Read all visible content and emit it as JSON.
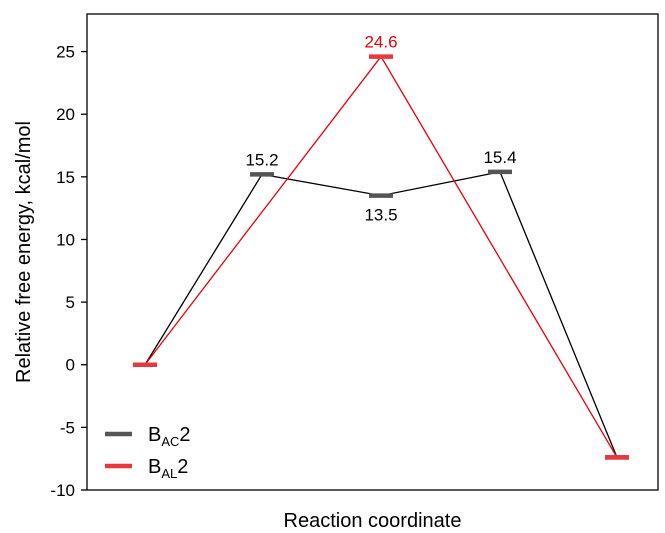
{
  "chart_data": {
    "type": "line",
    "xlabel": "Reaction coordinate",
    "ylabel": "Relative free energy, kcal/mol",
    "ylim": [
      -10,
      28
    ],
    "yticks": [
      -10,
      -5,
      0,
      5,
      10,
      15,
      20,
      25
    ],
    "ytick_labels": [
      "-10",
      "-5",
      "0",
      "5",
      "10",
      "15",
      "20",
      "25"
    ],
    "grid": false,
    "legend_position": "bottom-left",
    "series": [
      {
        "name_main": "B",
        "name_sub": "AC",
        "name_suffix": "2",
        "color": "#555555",
        "line_color": "#000000",
        "x": [
          0,
          1,
          2,
          3,
          4
        ],
        "y": [
          0,
          15.2,
          13.5,
          15.4,
          -7.4
        ],
        "labels": [
          {
            "index": 1,
            "text": "15.2",
            "position": "above"
          },
          {
            "index": 2,
            "text": "13.5",
            "position": "below"
          },
          {
            "index": 3,
            "text": "15.4",
            "position": "above"
          }
        ]
      },
      {
        "name_main": "B",
        "name_sub": "AL",
        "name_suffix": "2",
        "color": "#e8383d",
        "line_color": "#e8000b",
        "x": [
          0,
          2,
          4
        ],
        "y": [
          0,
          24.6,
          -7.4
        ],
        "labels": [
          {
            "index": 1,
            "text": "24.6",
            "position": "above",
            "color": "#e8000b"
          }
        ]
      }
    ]
  }
}
